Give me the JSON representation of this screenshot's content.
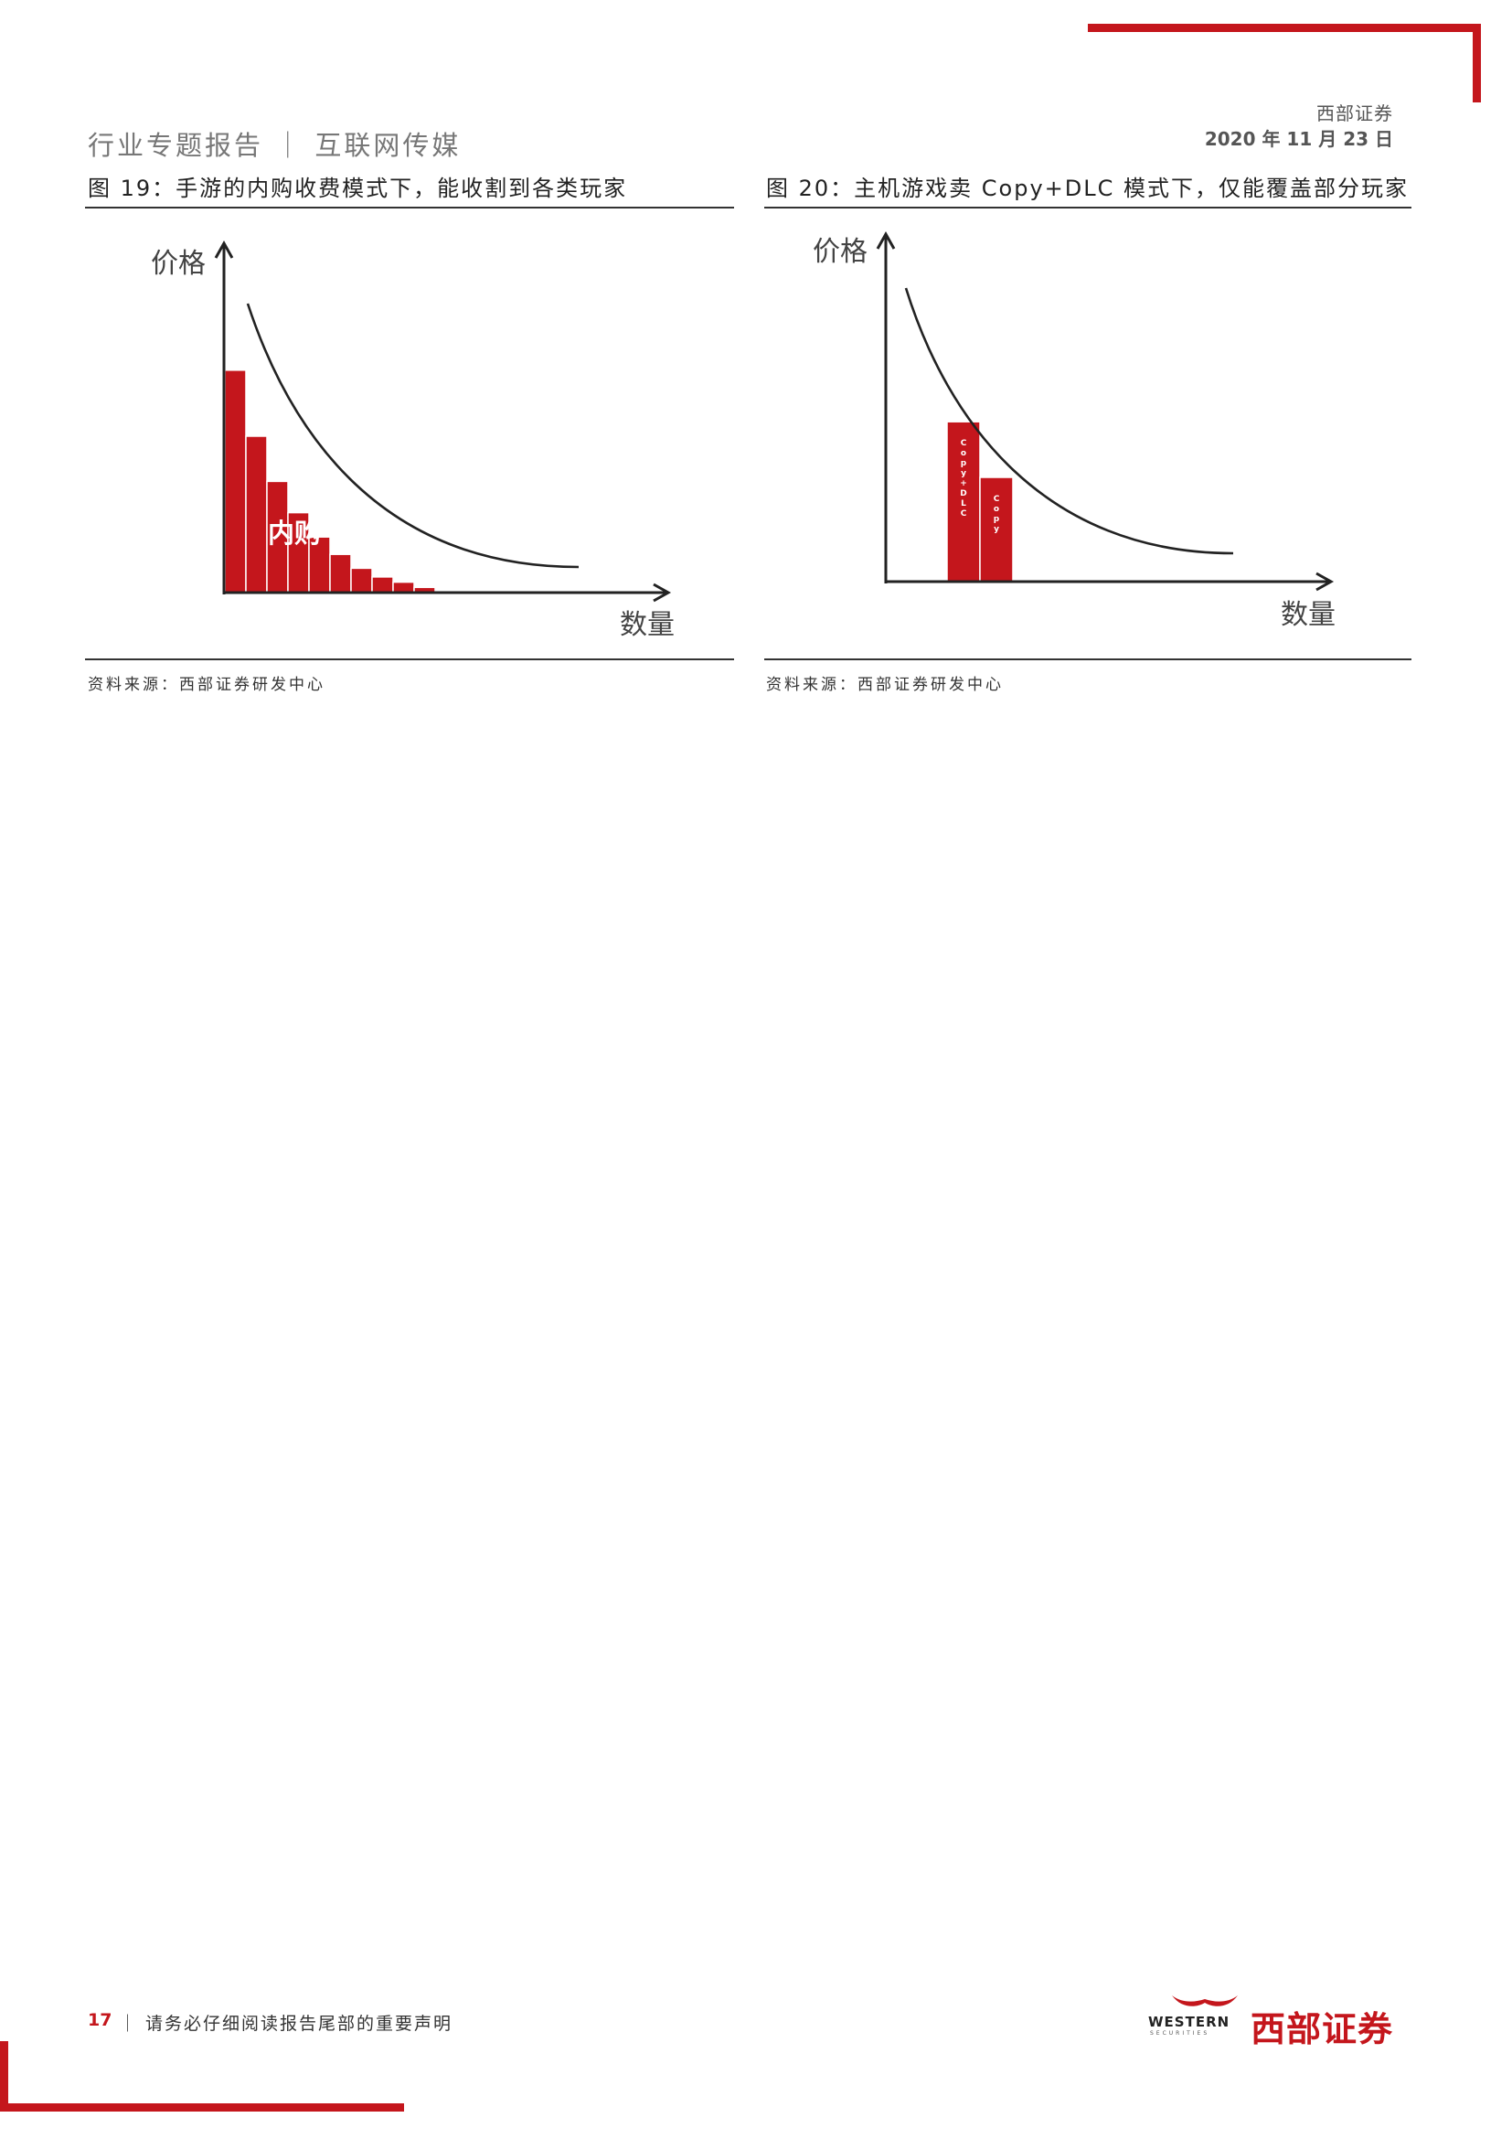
{
  "header": {
    "report_title": "行业专题报告 ｜ 互联网传媒",
    "company": "西部证券",
    "date": "2020 年 11 月 23 日"
  },
  "figures": [
    {
      "caption": "图 19：手游的内购收费模式下，能收割到各类玩家",
      "source": "资料来源：西部证券研发中心",
      "ylabel": "价格",
      "xlabel": "数量",
      "bar_label": "内购"
    },
    {
      "caption": "图 20：主机游戏卖 Copy+DLC 模式下，仅能覆盖部分玩家",
      "source": "资料来源：西部证券研发中心",
      "ylabel": "价格",
      "xlabel": "数量",
      "bar_labels": [
        "Copy+DLC",
        "Copy"
      ]
    }
  ],
  "chart_data": [
    {
      "type": "bar",
      "title": "",
      "xlabel": "数量",
      "ylabel": "价格",
      "bar_label": "内购",
      "values": [
        0.64,
        0.45,
        0.32,
        0.23,
        0.16,
        0.11,
        0.07,
        0.045,
        0.03,
        0.015
      ],
      "ylim": [
        0,
        1
      ],
      "curve": "decreasing demand curve",
      "colors": {
        "bars": "#c4161c",
        "curve": "#222222"
      }
    },
    {
      "type": "bar",
      "title": "",
      "xlabel": "数量",
      "ylabel": "价格",
      "categories": [
        "Copy+DLC",
        "Copy"
      ],
      "values": [
        0.46,
        0.3
      ],
      "ylim": [
        0,
        1
      ],
      "curve": "decreasing demand curve",
      "colors": {
        "bars": "#c4161c",
        "curve": "#222222"
      }
    }
  ],
  "footer": {
    "page_number": "17",
    "disclaimer": "｜ 请务必仔细阅读报告尾部的重要声明",
    "logo_en": "WESTERN",
    "logo_en_sub": "SECURITIES",
    "logo_cn": "西部证券"
  }
}
